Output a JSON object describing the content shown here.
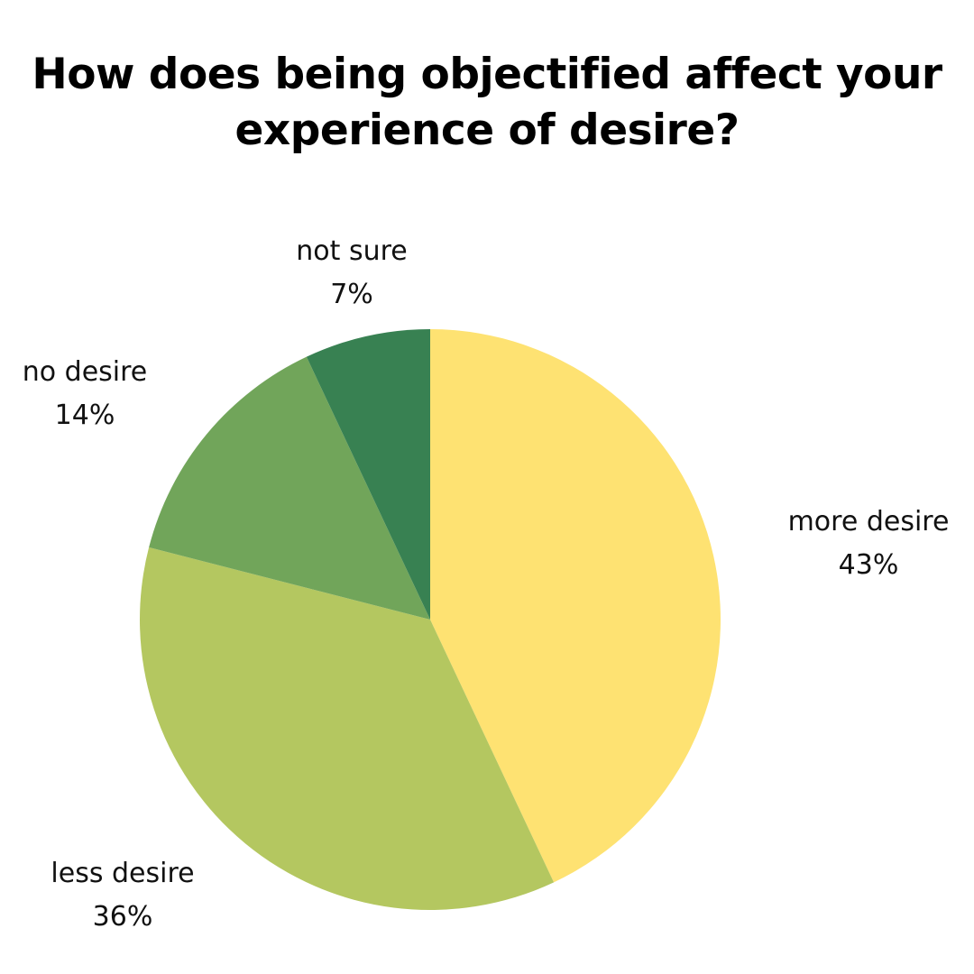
{
  "title": {
    "line1": "How does being objectified affect your",
    "line2": "experience of desire?"
  },
  "labels": {
    "more_desire": {
      "name": "more desire",
      "pct": "43%"
    },
    "less_desire": {
      "name": "less desire",
      "pct": "36%"
    },
    "no_desire": {
      "name": "no desire",
      "pct": "14%"
    },
    "not_sure": {
      "name": "not sure",
      "pct": "7%"
    }
  },
  "chart_data": {
    "type": "pie",
    "title": "How does being objectified affect your experience of desire?",
    "categories": [
      "more desire",
      "less desire",
      "no desire",
      "not sure"
    ],
    "values": [
      43,
      36,
      14,
      7
    ],
    "unit": "%",
    "colors": [
      "#FEE272",
      "#B4C760",
      "#71A55A",
      "#388152"
    ],
    "start_angle": "12 o'clock",
    "direction": "clockwise",
    "legend": "none (labels placed outside slices)"
  }
}
